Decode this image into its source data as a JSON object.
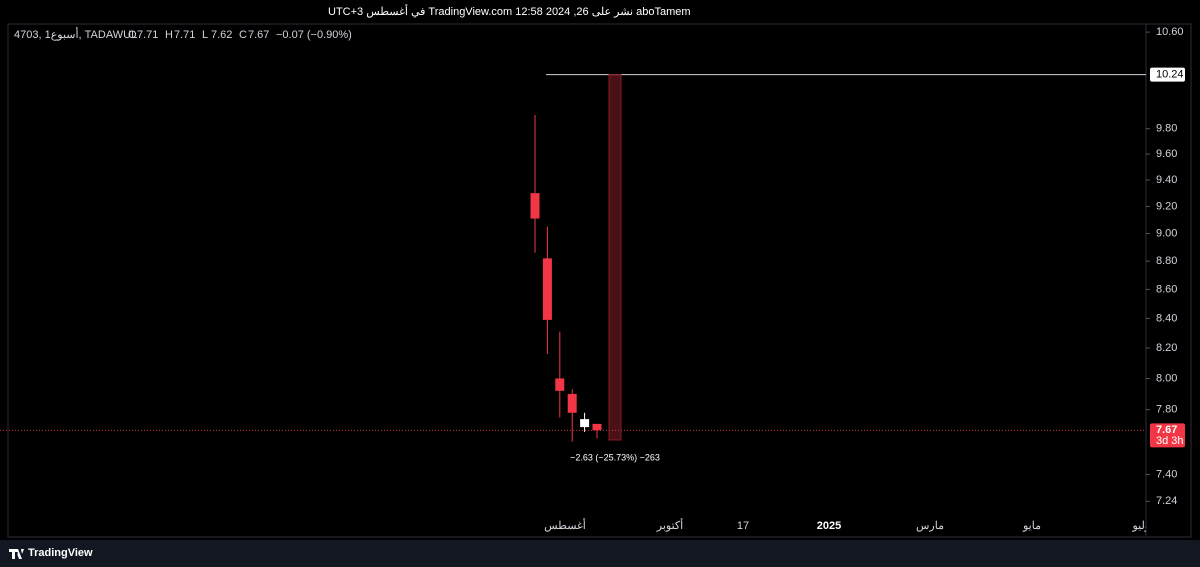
{
  "header": "aboTamem نشر على TradingView.com 12:58 2024 ,26 في أغسطس UTC+3",
  "footer": "TradingView",
  "chart_data": {
    "type": "candlestick",
    "symbol": "4703, 1أسبوع, TADAWUL",
    "legend": [
      {
        "label": "O",
        "value": "7.71"
      },
      {
        "label": "H",
        "value": "7.71"
      },
      {
        "label": "L",
        "value": "7.62"
      },
      {
        "label": "C",
        "value": "7.67"
      }
    ],
    "change": "−0.07 (−0.90%)",
    "open": [
      9.3,
      8.82,
      8.0,
      7.9,
      7.69,
      7.71
    ],
    "high": [
      9.91,
      9.05,
      8.31,
      7.93,
      7.78,
      7.71
    ],
    "low": [
      8.86,
      8.16,
      7.75,
      7.6,
      7.66,
      7.62
    ],
    "close": [
      9.11,
      8.39,
      7.92,
      7.78,
      7.74,
      7.67
    ],
    "up_color": "#ffffff",
    "down_color": "#f23645",
    "log_scale": true,
    "ylim": [
      7.16,
      10.67
    ],
    "yticks": [
      {
        "value": 10.6,
        "label": "10.60"
      },
      {
        "value": 9.8,
        "label": "9.80"
      },
      {
        "value": 9.6,
        "label": "9.60"
      },
      {
        "value": 9.4,
        "label": "9.40"
      },
      {
        "value": 9.2,
        "label": "9.20"
      },
      {
        "value": 9.0,
        "label": "9.00"
      },
      {
        "value": 8.8,
        "label": "8.80"
      },
      {
        "value": 8.6,
        "label": "8.60"
      },
      {
        "value": 8.4,
        "label": "8.40"
      },
      {
        "value": 8.2,
        "label": "8.20"
      },
      {
        "value": 8.0,
        "label": "8.00"
      },
      {
        "value": 7.8,
        "label": "7.80"
      },
      {
        "value": 7.4,
        "label": "7.40"
      },
      {
        "value": 7.24,
        "label": "7.24"
      }
    ],
    "time_labels": [
      "أغسطس",
      "أكتوبر",
      "17",
      "2025",
      "مارس",
      "مايو",
      "يوليو"
    ],
    "horizontal_line": {
      "value": 10.24,
      "label": "10.24"
    },
    "last_price": {
      "value": 7.67,
      "label": "7.67",
      "countdown": "3d 3h"
    },
    "measure": {
      "top": 10.24,
      "bottom": 7.61,
      "label": "−2.63 (−25.73%) −263"
    }
  }
}
